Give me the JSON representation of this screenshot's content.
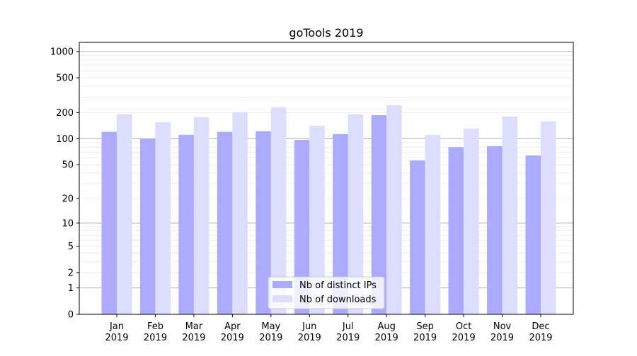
{
  "chart_data": {
    "type": "bar",
    "title": "goTools 2019",
    "xlabel": "",
    "ylabel": "",
    "yscale": "log(x+1)",
    "ylim": [
      0,
      1270
    ],
    "yticks": [
      0,
      1,
      2,
      5,
      10,
      20,
      50,
      100,
      200,
      500,
      1000
    ],
    "grid": true,
    "legend_position": "bottom-center",
    "categories": [
      "Jan\n2019",
      "Feb\n2019",
      "Mar\n2019",
      "Apr\n2019",
      "May\n2019",
      "Jun\n2019",
      "Jul\n2019",
      "Aug\n2019",
      "Sep\n2019",
      "Oct\n2019",
      "Nov\n2019",
      "Dec\n2019"
    ],
    "series": [
      {
        "name": "Nb of distinct IPs",
        "color": "#aaaaff",
        "values": [
          120,
          99,
          111,
          120,
          122,
          97,
          113,
          187,
          56,
          80,
          82,
          64
        ]
      },
      {
        "name": "Nb of downloads",
        "color": "#ddddff",
        "values": [
          191,
          155,
          177,
          202,
          230,
          141,
          191,
          243,
          111,
          131,
          180,
          158
        ]
      }
    ]
  }
}
